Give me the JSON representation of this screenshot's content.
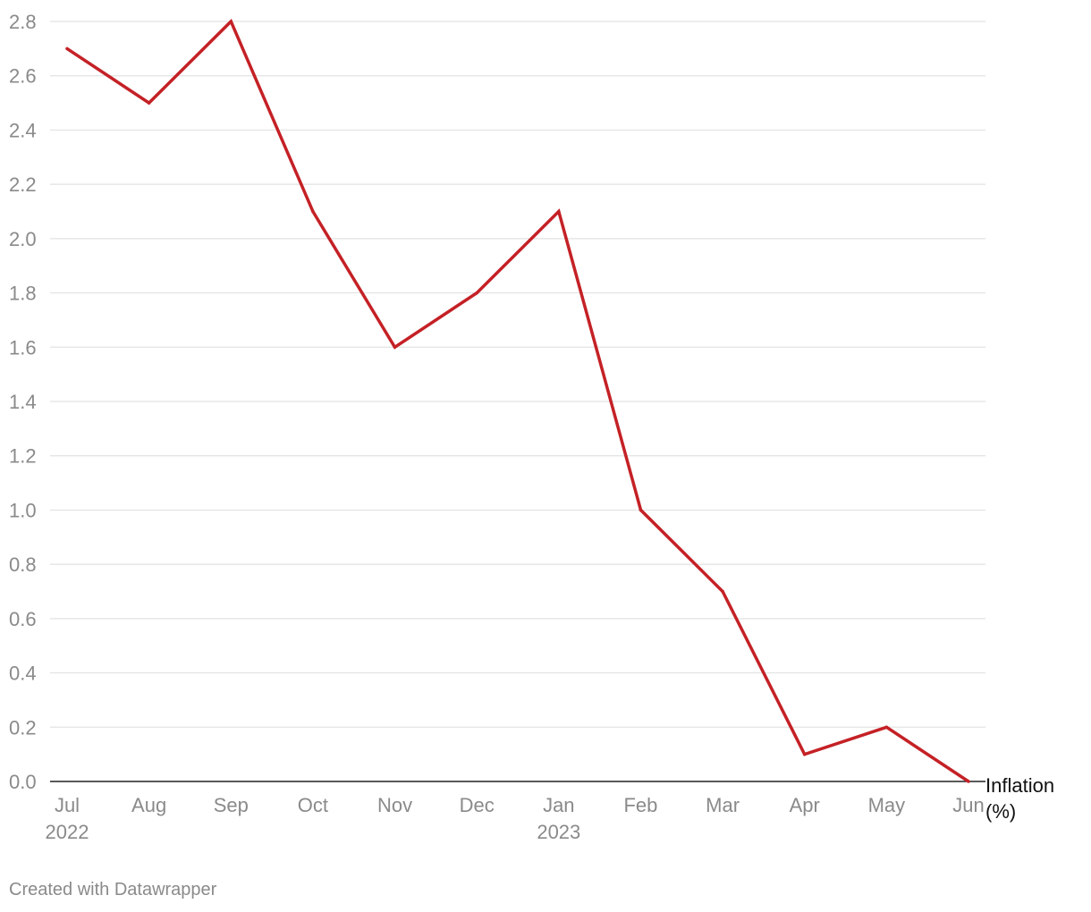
{
  "chart_data": {
    "type": "line",
    "categories": [
      "Jul",
      "Aug",
      "Sep",
      "Oct",
      "Nov",
      "Dec",
      "Jan",
      "Feb",
      "Mar",
      "Apr",
      "May",
      "Jun"
    ],
    "category_sublabels": [
      "2022",
      "",
      "",
      "",
      "",
      "",
      "2023",
      "",
      "",
      "",
      "",
      ""
    ],
    "series": [
      {
        "name": "Inflation (%)",
        "color": "#c42126",
        "values": [
          2.7,
          2.5,
          2.8,
          2.1,
          1.6,
          1.8,
          2.1,
          1.0,
          0.7,
          0.1,
          0.2,
          0.0
        ]
      }
    ],
    "series_label_lines": [
      "Inflation",
      "(%)"
    ],
    "yticks": [
      "0.0",
      "0.2",
      "0.4",
      "0.6",
      "0.8",
      "1.0",
      "1.2",
      "1.4",
      "1.6",
      "1.8",
      "2.0",
      "2.2",
      "2.4",
      "2.6",
      "2.8"
    ],
    "ylim": [
      0,
      2.8
    ],
    "grid": true,
    "title": "",
    "xlabel": "",
    "ylabel": ""
  },
  "credit": "Created with Datawrapper"
}
